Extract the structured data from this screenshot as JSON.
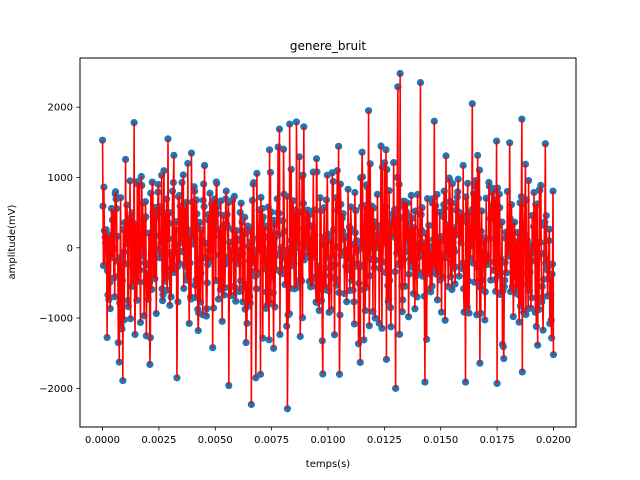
{
  "chart_data": {
    "type": "scatter",
    "title": "genere_bruit",
    "xlabel": "temps(s)",
    "ylabel": "amplitude(mV)",
    "xlim": [
      -0.001,
      0.021
    ],
    "ylim": [
      -2550,
      2700
    ],
    "xticks": [
      0.0,
      0.0025,
      0.005,
      0.0075,
      0.01,
      0.0125,
      0.015,
      0.0175,
      0.02
    ],
    "xtick_labels": [
      "0.0000",
      "0.0025",
      "0.0050",
      "0.0075",
      "0.0100",
      "0.0125",
      "0.0150",
      "0.0175",
      "0.0200"
    ],
    "yticks": [
      -2000,
      -1000,
      0,
      1000,
      2000
    ],
    "ytick_labels": [
      "−2000",
      "−1000",
      "0",
      "1000",
      "2000"
    ],
    "grid": false,
    "series": [
      {
        "style": "markers",
        "color": "#1f77b4",
        "x_start": 0.0,
        "x_end": 0.02,
        "num_points": 1000,
        "amplitude_envelope": [
          -1800,
          1800
        ],
        "notable_points": [
          {
            "x": 0.0,
            "y": 1530
          },
          {
            "x": 0.0007,
            "y": -1350
          },
          {
            "x": 0.0009,
            "y": -1890
          },
          {
            "x": 0.0014,
            "y": 1780
          },
          {
            "x": 0.0021,
            "y": -1660
          },
          {
            "x": 0.0033,
            "y": -1850
          },
          {
            "x": 0.0056,
            "y": -1960
          },
          {
            "x": 0.0066,
            "y": -2230
          },
          {
            "x": 0.0068,
            "y": -1850
          },
          {
            "x": 0.0082,
            "y": -2290
          },
          {
            "x": 0.0083,
            "y": 1760
          },
          {
            "x": 0.0086,
            "y": 1790
          },
          {
            "x": 0.0118,
            "y": 1950
          },
          {
            "x": 0.013,
            "y": -2000
          },
          {
            "x": 0.0131,
            "y": 2290
          },
          {
            "x": 0.0132,
            "y": 2480
          },
          {
            "x": 0.0141,
            "y": 2350
          },
          {
            "x": 0.0143,
            "y": -1910
          },
          {
            "x": 0.0161,
            "y": -1910
          },
          {
            "x": 0.0164,
            "y": 2050
          },
          {
            "x": 0.0175,
            "y": -1930
          },
          {
            "x": 0.0186,
            "y": 1830
          },
          {
            "x": 0.02,
            "y": 1530
          },
          {
            "x": 0.02,
            "y": -1520
          }
        ]
      },
      {
        "style": "stem-line",
        "color": "#ff0000",
        "x_start": 0.0,
        "x_end": 0.02,
        "num_points": 1000
      }
    ]
  }
}
